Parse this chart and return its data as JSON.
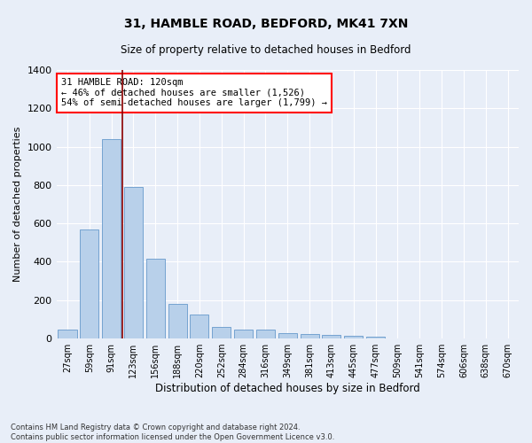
{
  "title": "31, HAMBLE ROAD, BEDFORD, MK41 7XN",
  "subtitle": "Size of property relative to detached houses in Bedford",
  "xlabel": "Distribution of detached houses by size in Bedford",
  "ylabel": "Number of detached properties",
  "annotation_line1": "31 HAMBLE ROAD: 120sqm",
  "annotation_line2": "← 46% of detached houses are smaller (1,526)",
  "annotation_line3": "54% of semi-detached houses are larger (1,799) →",
  "categories": [
    "27sqm",
    "59sqm",
    "91sqm",
    "123sqm",
    "156sqm",
    "188sqm",
    "220sqm",
    "252sqm",
    "284sqm",
    "316sqm",
    "349sqm",
    "381sqm",
    "413sqm",
    "445sqm",
    "477sqm",
    "509sqm",
    "541sqm",
    "574sqm",
    "606sqm",
    "638sqm",
    "670sqm"
  ],
  "values": [
    47,
    570,
    1040,
    790,
    415,
    180,
    125,
    62,
    47,
    47,
    27,
    22,
    17,
    12,
    10,
    0,
    0,
    0,
    0,
    0,
    0
  ],
  "bar_color": "#b8d0ea",
  "bar_edge_color": "#6699cc",
  "vline_x": 2.5,
  "vline_color": "#8b0000",
  "background_color": "#e8eef8",
  "grid_color": "#ffffff",
  "footnote": "Contains HM Land Registry data © Crown copyright and database right 2024.\nContains public sector information licensed under the Open Government Licence v3.0.",
  "ylim": [
    0,
    1400
  ],
  "yticks": [
    0,
    200,
    400,
    600,
    800,
    1000,
    1200,
    1400
  ]
}
